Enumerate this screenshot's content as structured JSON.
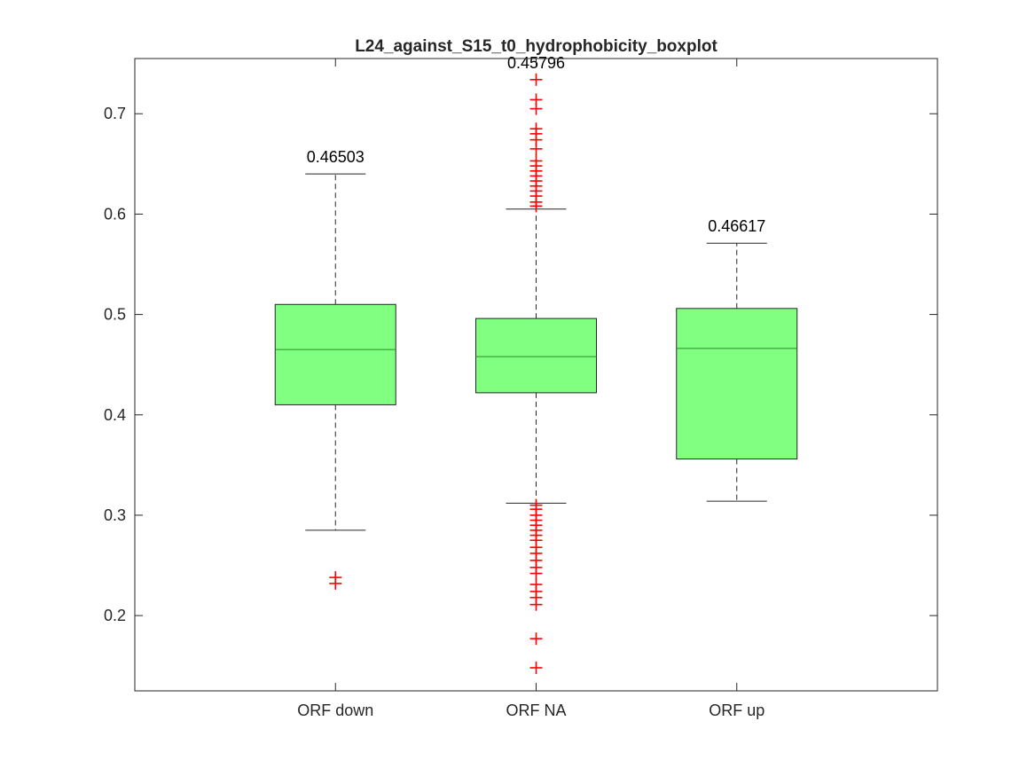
{
  "chart_data": {
    "type": "boxplot",
    "title": "L24_against_S15_t0_hydrophobicity_boxplot",
    "xlabel": "",
    "ylabel": "",
    "categories": [
      "ORF down",
      "ORF NA",
      "ORF up"
    ],
    "ylim": [
      0.125,
      0.755
    ],
    "yticks": [
      0.2,
      0.3,
      0.4,
      0.5,
      0.6,
      0.7
    ],
    "ytick_labels": [
      "0.2",
      "0.3",
      "0.4",
      "0.5",
      "0.6",
      "0.7"
    ],
    "grid": false,
    "box_color": "#80ff80",
    "median_color": "#2a8a2a",
    "outlier_color": "#ff0000",
    "boxes": [
      {
        "category": "ORF down",
        "whisker_low": 0.285,
        "q1": 0.41,
        "median": 0.46503,
        "q3": 0.51,
        "whisker_high": 0.64,
        "median_label": "0.46503",
        "outliers": [
          0.232,
          0.238
        ]
      },
      {
        "category": "ORF NA",
        "whisker_low": 0.312,
        "q1": 0.422,
        "median": 0.45796,
        "q3": 0.496,
        "whisker_high": 0.605,
        "median_label": "0.45796",
        "outliers": [
          0.148,
          0.177,
          0.211,
          0.218,
          0.224,
          0.231,
          0.242,
          0.248,
          0.255,
          0.262,
          0.268,
          0.275,
          0.28,
          0.285,
          0.29,
          0.295,
          0.3,
          0.306,
          0.31,
          0.608,
          0.612,
          0.618,
          0.623,
          0.628,
          0.633,
          0.638,
          0.643,
          0.648,
          0.653,
          0.665,
          0.674,
          0.68,
          0.685,
          0.705,
          0.714,
          0.734
        ]
      },
      {
        "category": "ORF up",
        "whisker_low": 0.314,
        "q1": 0.356,
        "median": 0.46617,
        "q3": 0.506,
        "whisker_high": 0.571,
        "median_label": "0.46617",
        "outliers": []
      }
    ]
  }
}
